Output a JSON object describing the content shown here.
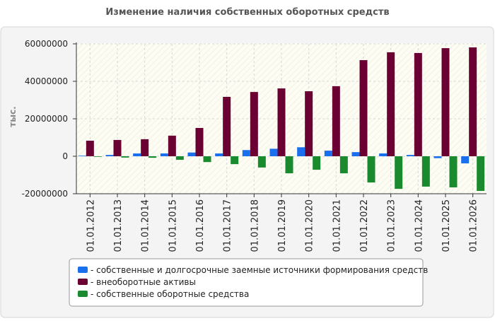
{
  "chart_data": {
    "type": "bar",
    "title": "Изменение наличия собственных оборотных средств",
    "y_label": "тыс.",
    "categories": [
      "01.01.2012",
      "01.01.2013",
      "01.01.2014",
      "01.01.2015",
      "01.01.2016",
      "01.01.2017",
      "01.01.2018",
      "01.01.2019",
      "01.01.2020",
      "01.01.2021",
      "01.01.2022",
      "01.01.2023",
      "01.01.2024",
      "01.01.2025",
      "01.01.2026"
    ],
    "series": [
      {
        "name": "- собственные и долгосрочные заемные источники формирования средств",
        "color": "#1a6fef",
        "values": [
          300000,
          700000,
          1500000,
          1500000,
          2000000,
          1500000,
          3300000,
          4000000,
          4800000,
          3000000,
          2200000,
          1500000,
          700000,
          -1000000,
          -3800000
        ]
      },
      {
        "name": "- внеоборотные активы",
        "color": "#6b0033",
        "values": [
          8300000,
          8700000,
          9100000,
          11000000,
          15100000,
          31700000,
          34300000,
          36200000,
          34700000,
          37400000,
          51300000,
          55500000,
          55100000,
          57700000,
          58100000
        ]
      },
      {
        "name": "- собственные оборотные средства",
        "color": "#1a8a2e",
        "values": [
          -300000,
          -700000,
          -800000,
          -1900000,
          -3100000,
          -4200000,
          -6000000,
          -9100000,
          -7200000,
          -9100000,
          -14000000,
          -17400000,
          -16200000,
          -16600000,
          -18500000
        ]
      }
    ],
    "ylim": [
      -20000000,
      60000000
    ],
    "yticks": [
      -20000000,
      0,
      20000000,
      40000000,
      60000000
    ],
    "grid": true
  }
}
